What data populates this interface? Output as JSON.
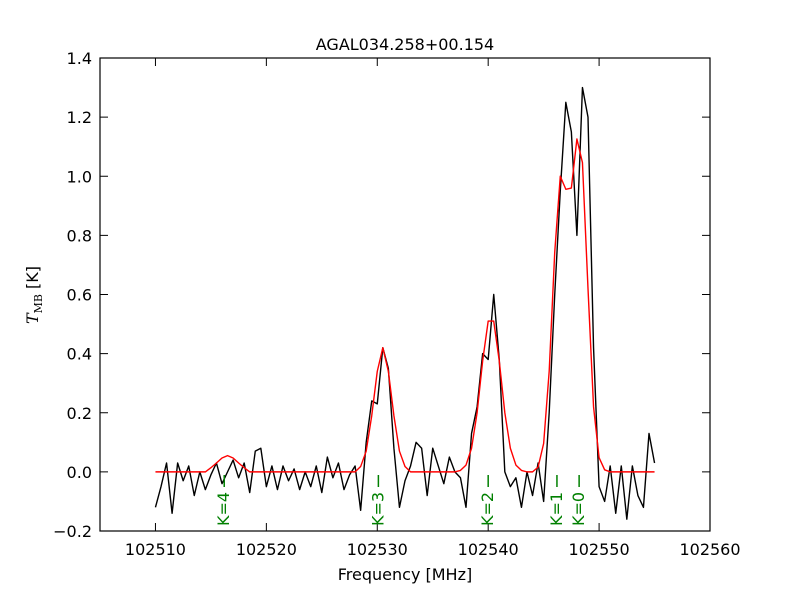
{
  "chart_data": {
    "type": "line",
    "title": "AGAL034.258+00.154",
    "xlabel": "Frequency [MHz]",
    "ylabel_symbol": "T",
    "ylabel_subscript": "MB",
    "ylabel_unit": "[K]",
    "xlim": [
      102505,
      102560
    ],
    "ylim": [
      -0.2,
      1.4
    ],
    "xticks": [
      102510,
      102520,
      102530,
      102540,
      102550,
      102560
    ],
    "yticks": [
      {
        "value": -0.2,
        "label": "−0.2"
      },
      {
        "value": 0,
        "label": "0.0"
      },
      {
        "value": 0.2,
        "label": "0.2"
      },
      {
        "value": 0.4,
        "label": "0.4"
      },
      {
        "value": 0.6,
        "label": "0.6"
      },
      {
        "value": 0.8,
        "label": "0.8"
      },
      {
        "value": 1,
        "label": "1.0"
      },
      {
        "value": 1.2,
        "label": "1.2"
      },
      {
        "value": 1.4,
        "label": "1.4"
      }
    ],
    "x": [
      102510,
      102510.5,
      102511,
      102511.5,
      102512,
      102512.5,
      102513,
      102513.5,
      102514,
      102514.5,
      102515,
      102515.5,
      102516,
      102516.5,
      102517,
      102517.5,
      102518,
      102518.5,
      102519,
      102519.5,
      102520,
      102520.5,
      102521,
      102521.5,
      102522,
      102522.5,
      102523,
      102523.5,
      102524,
      102524.5,
      102525,
      102525.5,
      102526,
      102526.5,
      102527,
      102527.5,
      102528,
      102528.5,
      102529,
      102529.5,
      102530,
      102530.5,
      102531,
      102531.5,
      102532,
      102532.5,
      102533,
      102533.5,
      102534,
      102534.5,
      102535,
      102535.5,
      102536,
      102536.5,
      102537,
      102537.5,
      102538,
      102538.5,
      102539,
      102539.5,
      102540,
      102540.5,
      102541,
      102541.5,
      102542,
      102542.5,
      102543,
      102543.5,
      102544,
      102544.5,
      102545,
      102545.5,
      102546,
      102546.5,
      102547,
      102547.5,
      102548,
      102548.5,
      102549,
      102549.5,
      102550,
      102550.5,
      102551,
      102551.5,
      102552,
      102552.5,
      102553,
      102553.5,
      102554,
      102554.5,
      102555
    ],
    "series": [
      {
        "color": "#000000",
        "values": [
          -0.12,
          -0.05,
          0.03,
          -0.14,
          0.03,
          -0.03,
          0.02,
          -0.08,
          0.0,
          -0.06,
          -0.01,
          0.03,
          -0.04,
          0.0,
          0.04,
          -0.02,
          0.03,
          -0.07,
          0.07,
          0.08,
          -0.05,
          0.02,
          -0.06,
          0.02,
          -0.03,
          0.01,
          -0.06,
          0.0,
          -0.05,
          0.02,
          -0.07,
          0.05,
          -0.02,
          0.03,
          -0.06,
          -0.01,
          0.02,
          -0.13,
          0.1,
          0.24,
          0.23,
          0.42,
          0.35,
          0.08,
          -0.12,
          -0.03,
          0.02,
          0.1,
          0.08,
          -0.08,
          0.08,
          0.02,
          -0.04,
          0.05,
          0.0,
          -0.02,
          -0.12,
          0.13,
          0.22,
          0.4,
          0.38,
          0.6,
          0.38,
          0.0,
          -0.05,
          -0.02,
          -0.12,
          0.0,
          -0.08,
          0.03,
          -0.1,
          0.2,
          0.6,
          0.95,
          1.25,
          1.15,
          0.8,
          1.3,
          1.2,
          0.42,
          -0.05,
          -0.1,
          0.02,
          -0.14,
          0.02,
          -0.16,
          0.02,
          -0.08,
          -0.12,
          0.13,
          0.03
        ]
      },
      {
        "color": "#ff0000",
        "values": [
          0,
          0,
          0,
          0,
          0,
          0,
          0,
          0,
          0,
          0,
          0.014,
          0.03,
          0.047,
          0.055,
          0.047,
          0.03,
          0.014,
          0,
          0,
          0,
          0,
          0,
          0,
          0,
          0,
          0,
          0,
          0,
          0,
          0,
          0,
          0,
          0,
          0,
          0,
          0,
          0,
          0.018,
          0.07,
          0.19,
          0.34,
          0.42,
          0.34,
          0.19,
          0.07,
          0.018,
          0,
          0,
          0,
          0,
          0,
          0,
          0,
          0,
          0,
          0.005,
          0.023,
          0.08,
          0.2,
          0.375,
          0.51,
          0.51,
          0.375,
          0.2,
          0.08,
          0.023,
          0.005,
          0,
          0,
          0.016,
          0.096,
          0.34,
          0.743,
          1.0,
          0.956,
          0.96,
          1.126,
          1.046,
          0.62,
          0.22,
          0.048,
          0.007,
          0,
          0,
          0,
          0,
          0,
          0,
          0,
          0,
          0
        ]
      }
    ],
    "annotation_color": "#008000",
    "annotations": [
      {
        "text": "K=4",
        "x": 102516.2
      },
      {
        "text": "K=3",
        "x": 102530.1
      },
      {
        "text": "K=2",
        "x": 102540.0
      },
      {
        "text": "K=1",
        "x": 102546.2
      },
      {
        "text": "K=0",
        "x": 102548.2
      }
    ]
  }
}
